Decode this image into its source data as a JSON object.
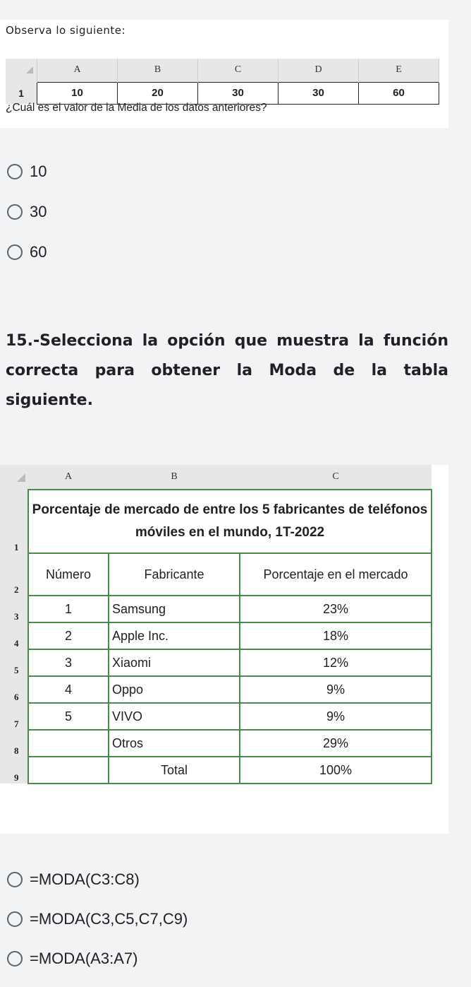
{
  "question1": {
    "intro": "Observa lo siguiente:",
    "sheet": {
      "columns": [
        "A",
        "B",
        "C",
        "D",
        "E"
      ],
      "row_number": "1",
      "values": [
        "10",
        "20",
        "30",
        "30",
        "60"
      ]
    },
    "prompt": "¿Cuál es el valor de la Media de los datos anteriores?",
    "options": [
      "10",
      "30",
      "60"
    ]
  },
  "question2": {
    "title": "15.-Selecciona la opción que muestra la función correcta para obtener la Moda de la tabla siguiente.",
    "sheet": {
      "columns": [
        "A",
        "B",
        "C"
      ],
      "row_numbers": [
        "1",
        "2",
        "3",
        "4",
        "5",
        "6",
        "7",
        "8",
        "9"
      ],
      "title": "Porcentaje  de mercado de entre los 5 fabricantes de teléfonos móviles en el mundo, 1T-2022",
      "headers": [
        "Número",
        "Fabricante",
        "Porcentaje en el mercado"
      ],
      "rows": [
        {
          "num": "1",
          "maker": "Samsung",
          "pct": "23%"
        },
        {
          "num": "2",
          "maker": "Apple Inc.",
          "pct": "18%"
        },
        {
          "num": "3",
          "maker": "Xiaomi",
          "pct": "12%"
        },
        {
          "num": "4",
          "maker": "Oppo",
          "pct": "9%"
        },
        {
          "num": "5",
          "maker": "VIVO",
          "pct": "9%"
        },
        {
          "num": "",
          "maker": "Otros",
          "pct": "29%"
        },
        {
          "num": "",
          "maker": "Total",
          "pct": "100%"
        }
      ]
    },
    "options": [
      "=MODA(C3:C8)",
      "=MODA(C3,C5,C7,C9)",
      "=MODA(A3:A7)"
    ]
  }
}
